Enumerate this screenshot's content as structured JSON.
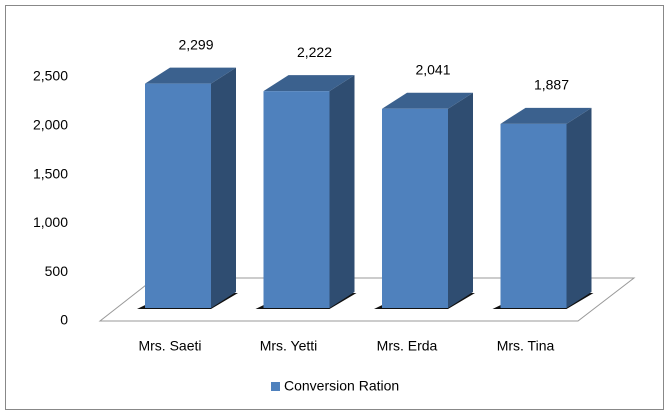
{
  "chart_data": {
    "type": "bar3d",
    "categories": [
      "Mrs. Saeti",
      "Mrs. Yetti",
      "Mrs. Erda",
      "Mrs. Tina"
    ],
    "series": [
      {
        "name": "Conversion Ration",
        "color": "#4f81bd",
        "values": [
          2299,
          2222,
          2041,
          1887
        ],
        "value_labels": [
          "2,299",
          "2,222",
          "2,041",
          "1,887"
        ]
      }
    ],
    "ylim": [
      0,
      2500
    ],
    "yticks": [
      0,
      500,
      {
        "value": 1000,
        "label": "1,000"
      },
      {
        "value": 1500,
        "label": "1,500"
      },
      {
        "value": 2000,
        "label": "2,000"
      },
      {
        "value": 2500,
        "label": "2,500"
      }
    ],
    "grid": false,
    "legend": "bottom"
  }
}
